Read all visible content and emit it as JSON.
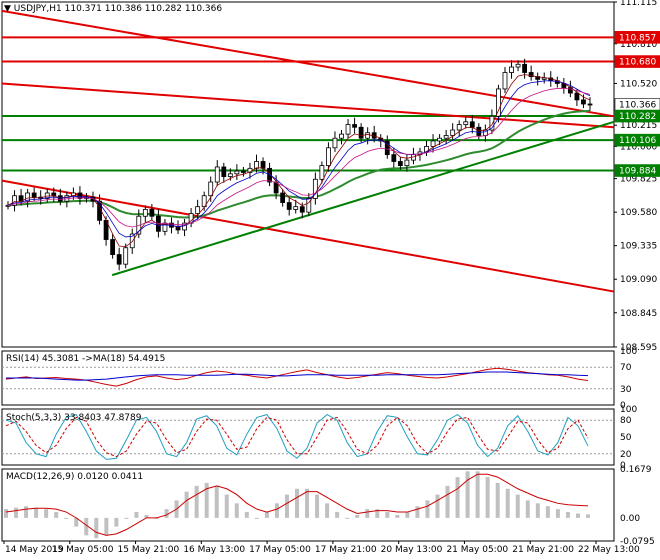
{
  "symbol_header": {
    "symbol": "USDJPY,H1",
    "ohlc": "110.371 110.386 110.282 110.366"
  },
  "colors": {
    "resistance": "#e00000",
    "support": "#008000",
    "grid": "#c8c8c8",
    "candle": "#000000",
    "ema_fast": "#8b0000",
    "ema_mid": "#0000cd",
    "ema_slow": "#c71585",
    "ma_long": "#2e8b2e",
    "rsi_line": "#cc0000",
    "rsi_ma": "#0000cc",
    "stoch_main": "#20a0c0",
    "stoch_signal": "#cc0000",
    "macd_hist": "#c0c0c0",
    "macd_signal": "#cc0000",
    "price_tag_bg": "#ffffff"
  },
  "chart_data": [
    {
      "type": "candlestick",
      "title": "USDJPY,H1",
      "ylim": [
        108.595,
        111.115
      ],
      "y_ticks": [
        "111.115",
        "110.810",
        "110.680",
        "110.520",
        "110.215",
        "110.060",
        "109.825",
        "109.580",
        "109.335",
        "109.090",
        "108.845",
        "108.595"
      ],
      "x_ticks": [
        "14 May 2019",
        "15 May 05:00",
        "15 May 21:00",
        "16 May 13:00",
        "17 May 05:00",
        "17 May 21:00",
        "20 May 13:00",
        "21 May 05:00",
        "21 May 21:00",
        "22 May 13:00"
      ],
      "price_tags": [
        {
          "value": 110.857,
          "label": "110.857",
          "kind": "resistance"
        },
        {
          "value": 110.68,
          "label": "110.680",
          "kind": "resistance"
        },
        {
          "value": 110.366,
          "label": "110.366",
          "kind": "current"
        },
        {
          "value": 110.282,
          "label": "110.282",
          "kind": "support"
        },
        {
          "value": 110.106,
          "label": "110.106",
          "kind": "support"
        },
        {
          "value": 109.884,
          "label": "109.884",
          "kind": "support"
        }
      ],
      "horizontal_levels": [
        {
          "value": 110.857,
          "kind": "resistance"
        },
        {
          "value": 110.68,
          "kind": "resistance"
        },
        {
          "value": 110.282,
          "kind": "support"
        },
        {
          "value": 110.106,
          "kind": "support"
        },
        {
          "value": 109.884,
          "kind": "support"
        }
      ],
      "trend_lines": [
        {
          "kind": "resistance",
          "from": [
            0,
            111.05
          ],
          "to": [
            100,
            110.28
          ]
        },
        {
          "kind": "resistance",
          "from": [
            0,
            110.52
          ],
          "to": [
            100,
            110.2
          ]
        },
        {
          "kind": "resistance",
          "from": [
            0,
            109.81
          ],
          "to": [
            100,
            109.0
          ]
        },
        {
          "kind": "support",
          "from": [
            18,
            109.12
          ],
          "to": [
            100,
            110.24
          ]
        }
      ],
      "close_series": [
        109.63,
        109.7,
        109.66,
        109.72,
        109.69,
        109.68,
        109.72,
        109.7,
        109.66,
        109.7,
        109.72,
        109.68,
        109.69,
        109.66,
        109.52,
        109.38,
        109.27,
        109.2,
        109.32,
        109.42,
        109.55,
        109.6,
        109.55,
        109.44,
        109.5,
        109.47,
        109.45,
        109.5,
        109.57,
        109.62,
        109.7,
        109.8,
        109.91,
        109.84,
        109.86,
        109.88,
        109.87,
        109.9,
        109.95,
        109.9,
        109.8,
        109.72,
        109.65,
        109.6,
        109.62,
        109.58,
        109.68,
        109.82,
        109.92,
        110.05,
        110.12,
        110.15,
        110.22,
        110.2,
        110.12,
        110.16,
        110.12,
        110.1,
        110.0,
        109.95,
        109.92,
        109.96,
        110.0,
        110.02,
        110.06,
        110.1,
        110.12,
        110.14,
        110.18,
        110.22,
        110.24,
        110.2,
        110.14,
        110.18,
        110.28,
        110.48,
        110.6,
        110.64,
        110.66,
        110.6,
        110.57,
        110.55,
        110.56,
        110.54,
        110.52,
        110.49,
        110.45,
        110.4,
        110.37,
        110.366
      ]
    },
    {
      "type": "line",
      "title": "RSI(14) 45.3081 ->MA(18) 54.4915",
      "ylim": [
        0,
        100
      ],
      "y_ticks": [
        "100",
        "70",
        "30",
        "0"
      ],
      "series": [
        {
          "name": "RSI(14)",
          "values": [
            48,
            50,
            52,
            49,
            50,
            51,
            49,
            48,
            46,
            42,
            38,
            35,
            40,
            47,
            52,
            54,
            50,
            47,
            49,
            55,
            60,
            63,
            61,
            57,
            55,
            52,
            50,
            54,
            58,
            62,
            65,
            60,
            56,
            52,
            49,
            51,
            54,
            57,
            60,
            58,
            55,
            53,
            51,
            50,
            52,
            55,
            58,
            62,
            66,
            68,
            66,
            63,
            60,
            58,
            56,
            55,
            52,
            48,
            45.3081
          ]
        },
        {
          "name": "MA(18)",
          "values": [
            50,
            50,
            50,
            50,
            49,
            48,
            47,
            46,
            46,
            47,
            48,
            50,
            52,
            54,
            55,
            56,
            56,
            56,
            55,
            55,
            55,
            55,
            56,
            57,
            57,
            56,
            55,
            54,
            54,
            55,
            56,
            56,
            56,
            55,
            55,
            55,
            55,
            55,
            56,
            56,
            56,
            56,
            56,
            56,
            57,
            58,
            59,
            60,
            61,
            61,
            61,
            60,
            59,
            58,
            57,
            56,
            56,
            55,
            54.4915
          ]
        }
      ]
    },
    {
      "type": "line",
      "title": "Stoch(5,3,3) 33.8403 47.8789",
      "ylim": [
        0,
        100
      ],
      "y_ticks": [
        "100",
        "80",
        "50",
        "20",
        "0"
      ],
      "series": [
        {
          "name": "Stoch main",
          "values": [
            80,
            75,
            40,
            20,
            15,
            55,
            85,
            90,
            60,
            25,
            10,
            12,
            45,
            80,
            85,
            60,
            20,
            15,
            40,
            82,
            88,
            70,
            30,
            18,
            55,
            85,
            90,
            65,
            25,
            12,
            30,
            75,
            90,
            80,
            40,
            15,
            20,
            60,
            88,
            85,
            50,
            20,
            18,
            45,
            80,
            90,
            75,
            35,
            15,
            30,
            70,
            88,
            60,
            25,
            18,
            40,
            85,
            70,
            33.8403
          ]
        },
        {
          "name": "Stoch signal",
          "values": [
            70,
            78,
            60,
            35,
            22,
            35,
            65,
            85,
            78,
            45,
            22,
            15,
            25,
            55,
            78,
            75,
            45,
            22,
            28,
            60,
            82,
            80,
            55,
            28,
            32,
            65,
            85,
            80,
            45,
            20,
            20,
            50,
            80,
            85,
            60,
            28,
            20,
            35,
            70,
            85,
            70,
            38,
            20,
            30,
            60,
            82,
            85,
            55,
            28,
            25,
            50,
            78,
            75,
            45,
            22,
            30,
            65,
            80,
            47.8789
          ]
        }
      ]
    },
    {
      "type": "bar",
      "title": "MACD(12,26,9) 0.0120 0.0411",
      "ylim": [
        -0.0795,
        0.1679
      ],
      "y_ticks": [
        "0.1679",
        "0.00",
        "-0.0795"
      ],
      "series": [
        {
          "name": "MACD",
          "values": [
            0.03,
            0.035,
            0.04,
            0.035,
            0.03,
            0.02,
            0.0,
            -0.03,
            -0.06,
            -0.07,
            -0.06,
            -0.03,
            0.0,
            0.02,
            0.01,
            0.0,
            0.03,
            0.06,
            0.09,
            0.11,
            0.12,
            0.11,
            0.08,
            0.05,
            0.02,
            0.0,
            0.02,
            0.05,
            0.08,
            0.1,
            0.1,
            0.08,
            0.05,
            0.02,
            0.0,
            0.01,
            0.03,
            0.03,
            0.02,
            0.01,
            0.02,
            0.04,
            0.06,
            0.08,
            0.11,
            0.14,
            0.16,
            0.16,
            0.14,
            0.12,
            0.1,
            0.08,
            0.06,
            0.05,
            0.04,
            0.03,
            0.02,
            0.015,
            0.012
          ]
        },
        {
          "name": "Signal",
          "values": [
            0.02,
            0.025,
            0.03,
            0.033,
            0.033,
            0.03,
            0.02,
            0.0,
            -0.025,
            -0.05,
            -0.06,
            -0.055,
            -0.04,
            -0.02,
            0.0,
            0.0,
            0.01,
            0.03,
            0.06,
            0.08,
            0.1,
            0.11,
            0.1,
            0.08,
            0.05,
            0.03,
            0.02,
            0.03,
            0.05,
            0.07,
            0.09,
            0.09,
            0.07,
            0.05,
            0.03,
            0.015,
            0.02,
            0.025,
            0.025,
            0.02,
            0.02,
            0.03,
            0.04,
            0.06,
            0.08,
            0.1,
            0.13,
            0.15,
            0.15,
            0.14,
            0.12,
            0.1,
            0.085,
            0.07,
            0.06,
            0.05,
            0.045,
            0.043,
            0.0411
          ]
        }
      ]
    }
  ]
}
